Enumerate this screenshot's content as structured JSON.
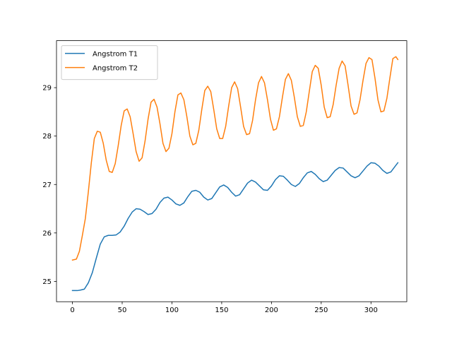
{
  "chart_data": {
    "type": "line",
    "title": "",
    "xlabel": "",
    "ylabel": "",
    "xlim": [
      -16,
      336
    ],
    "ylim": [
      24.58,
      29.97
    ],
    "xticks": [
      0,
      50,
      100,
      150,
      200,
      250,
      300
    ],
    "yticks": [
      25,
      26,
      27,
      28,
      29
    ],
    "legend": "top-left",
    "grid": false,
    "series": [
      {
        "name": "Angstrom T1",
        "color": "#1f77b4",
        "x": [
          0,
          5,
          8,
          12,
          16,
          20,
          24,
          28,
          32,
          36,
          40,
          44,
          48,
          52,
          56,
          60,
          64,
          68,
          72,
          76,
          80,
          84,
          88,
          92,
          96,
          100,
          104,
          108,
          112,
          116,
          120,
          124,
          128,
          132,
          136,
          140,
          144,
          148,
          152,
          156,
          160,
          164,
          168,
          172,
          176,
          180,
          184,
          188,
          192,
          196,
          200,
          204,
          208,
          212,
          216,
          220,
          224,
          228,
          232,
          236,
          240,
          244,
          248,
          252,
          256,
          260,
          264,
          268,
          272,
          276,
          280,
          284,
          288,
          292,
          296,
          300,
          304,
          308,
          312,
          316,
          320,
          324,
          327
        ],
        "y": [
          24.81,
          24.81,
          24.82,
          24.84,
          24.97,
          25.18,
          25.48,
          25.77,
          25.92,
          25.95,
          25.95,
          25.96,
          26.02,
          26.14,
          26.3,
          26.43,
          26.5,
          26.49,
          26.44,
          26.38,
          26.4,
          26.49,
          26.63,
          26.72,
          26.74,
          26.68,
          26.6,
          26.57,
          26.62,
          26.75,
          26.86,
          26.88,
          26.84,
          26.74,
          26.68,
          26.71,
          26.83,
          26.95,
          26.99,
          26.94,
          26.84,
          26.76,
          26.79,
          26.91,
          27.03,
          27.09,
          27.05,
          26.97,
          26.89,
          26.88,
          26.97,
          27.1,
          27.18,
          27.17,
          27.09,
          27.0,
          26.96,
          27.02,
          27.14,
          27.24,
          27.27,
          27.21,
          27.12,
          27.06,
          27.09,
          27.19,
          27.29,
          27.35,
          27.34,
          27.26,
          27.18,
          27.14,
          27.18,
          27.28,
          27.38,
          27.45,
          27.44,
          27.38,
          27.29,
          27.23,
          27.26,
          27.37,
          27.45
        ]
      },
      {
        "name": "Angstrom T2",
        "color": "#ff7f0e",
        "x": [
          0,
          4,
          7,
          10,
          13,
          16,
          19,
          22,
          25,
          28,
          31,
          34,
          37,
          40,
          43,
          46,
          49,
          52,
          55,
          58,
          61,
          64,
          67,
          70,
          73,
          76,
          79,
          82,
          85,
          88,
          91,
          94,
          97,
          100,
          103,
          106,
          109,
          112,
          115,
          118,
          121,
          124,
          127,
          130,
          133,
          136,
          139,
          142,
          145,
          148,
          151,
          154,
          157,
          160,
          163,
          166,
          169,
          172,
          175,
          178,
          181,
          184,
          187,
          190,
          193,
          196,
          199,
          202,
          205,
          208,
          211,
          214,
          217,
          220,
          223,
          226,
          229,
          232,
          235,
          238,
          241,
          244,
          247,
          250,
          253,
          256,
          259,
          262,
          265,
          268,
          271,
          274,
          277,
          280,
          283,
          286,
          289,
          292,
          295,
          298,
          301,
          304,
          307,
          310,
          313,
          316,
          319,
          322,
          325,
          327
        ],
        "y": [
          25.44,
          25.46,
          25.62,
          25.95,
          26.3,
          26.85,
          27.45,
          27.95,
          28.1,
          28.08,
          27.85,
          27.5,
          27.27,
          27.25,
          27.43,
          27.8,
          28.22,
          28.52,
          28.56,
          28.4,
          28.05,
          27.68,
          27.48,
          27.55,
          27.9,
          28.35,
          28.7,
          28.76,
          28.6,
          28.25,
          27.85,
          27.68,
          27.75,
          28.05,
          28.5,
          28.85,
          28.89,
          28.75,
          28.4,
          28.0,
          27.82,
          27.85,
          28.12,
          28.55,
          28.94,
          29.03,
          28.92,
          28.55,
          28.15,
          27.95,
          27.95,
          28.2,
          28.62,
          29.0,
          29.12,
          28.98,
          28.6,
          28.2,
          28.03,
          28.05,
          28.32,
          28.75,
          29.1,
          29.23,
          29.1,
          28.75,
          28.35,
          28.12,
          28.15,
          28.4,
          28.8,
          29.17,
          29.29,
          29.15,
          28.8,
          28.4,
          28.2,
          28.22,
          28.5,
          28.92,
          29.33,
          29.46,
          29.4,
          29.05,
          28.6,
          28.38,
          28.4,
          28.65,
          29.05,
          29.4,
          29.55,
          29.45,
          29.05,
          28.62,
          28.45,
          28.48,
          28.75,
          29.15,
          29.5,
          29.62,
          29.58,
          29.2,
          28.75,
          28.5,
          28.52,
          28.78,
          29.2,
          29.6,
          29.64,
          29.58
        ]
      }
    ]
  }
}
